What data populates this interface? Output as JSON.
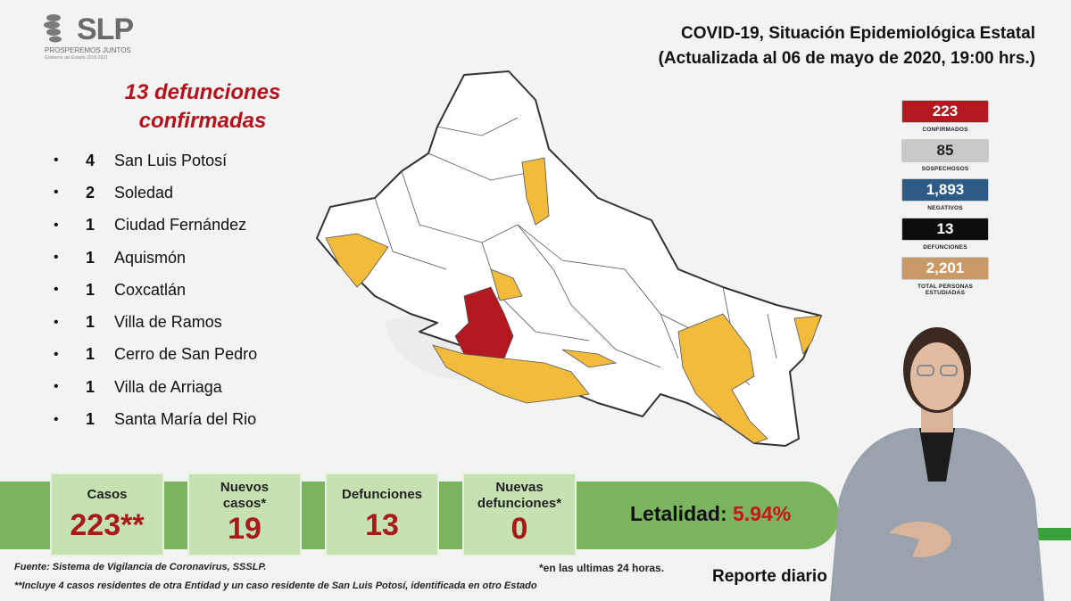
{
  "logo": {
    "text": "SLP",
    "subtitle": "PROSPEREMOS JUNTOS",
    "subtitle2": "Gobierno del Estado 2015-2021"
  },
  "header": {
    "title": "COVID-19, Situación Epidemiológica Estatal",
    "subtitle": "(Actualizada al 06 de mayo de 2020, 19:00 hrs.)"
  },
  "deaths": {
    "heading_line1": "13 defunciones",
    "heading_line2": "confirmadas",
    "items": [
      {
        "count": "4",
        "name": "San Luis Potosí"
      },
      {
        "count": "2",
        "name": "Soledad"
      },
      {
        "count": "1",
        "name": "Ciudad Fernández"
      },
      {
        "count": "1",
        "name": "Aquismón"
      },
      {
        "count": "1",
        "name": "Coxcatlán"
      },
      {
        "count": "1",
        "name": "Villa de Ramos"
      },
      {
        "count": "1",
        "name": "Cerro de San Pedro"
      },
      {
        "count": "1",
        "name": "Villa de Arriaga"
      },
      {
        "count": "1",
        "name": "Santa María del Rio"
      }
    ]
  },
  "stats": [
    {
      "value": "223",
      "label": "CONFIRMADOS",
      "color": "#b3171f",
      "text_color": "#ffffff"
    },
    {
      "value": "85",
      "label": "SOSPECHOSOS",
      "color": "#c9c9c9",
      "text_color": "#222222"
    },
    {
      "value": "1,893",
      "label": "NEGATIVOS",
      "color": "#2e5b86",
      "text_color": "#ffffff"
    },
    {
      "value": "13",
      "label": "DEFUNCIONES",
      "color": "#0d0d0d",
      "text_color": "#ffffff"
    },
    {
      "value": "2,201",
      "label": "TOTAL PERSONAS ESTUDIADAS",
      "color": "#c99a67",
      "text_color": "#ffffff"
    }
  ],
  "cards": [
    {
      "label_line1": "Casos",
      "label_line2": "",
      "value": "223**"
    },
    {
      "label_line1": "Nuevos",
      "label_line2": "casos*",
      "value": "19"
    },
    {
      "label_line1": "Defunciones",
      "label_line2": "",
      "value": "13"
    },
    {
      "label_line1": "Nuevas",
      "label_line2": "defunciones*",
      "value": "0"
    }
  ],
  "lethality": {
    "label": "Letalidad:",
    "value": "5.94%"
  },
  "footer": {
    "source": "Fuente: Sistema de Vigilancia de Coronavirus, SSSLP.",
    "note": "**Incluye 4 casos residentes de otra Entidad y un caso residente de San Luis Potosí, identificada en otro Estado",
    "asterisk_note": "*en las ultimas 24 horas.",
    "report_label": "Reporte diario"
  },
  "colors": {
    "band_green": "#7bb45e",
    "card_green": "#c6e2b2",
    "map_yellow": "#f2bb3c",
    "map_red": "#b3171f",
    "accent_red": "#b5121b"
  }
}
